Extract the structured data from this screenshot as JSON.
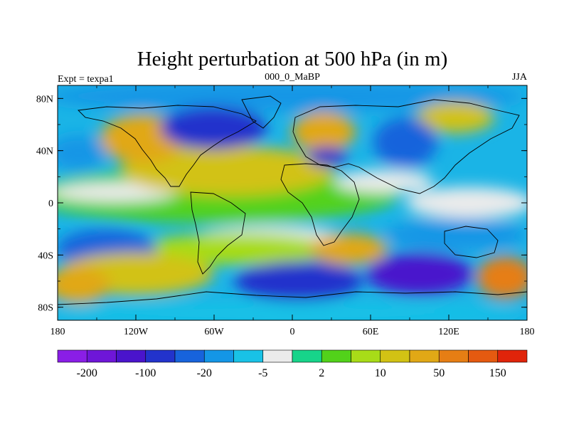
{
  "chart_data": {
    "type": "heatmap",
    "title": "Height perturbation at 500 hPa (in m)",
    "left_label": "Expt = texpa1",
    "center_label": "000_0_MaBP",
    "right_label": "JJA",
    "x_ticks": [
      "180",
      "120W",
      "60W",
      "0",
      "60E",
      "120E",
      "180"
    ],
    "y_ticks": [
      "80N",
      "40N",
      "0",
      "40S",
      "80S"
    ],
    "xlim": [
      -180,
      180
    ],
    "ylim": [
      -90,
      90
    ],
    "colorbar": {
      "levels": [
        "-200",
        "-100",
        "-20",
        "-5",
        "2",
        "10",
        "50",
        "150"
      ],
      "colors": [
        "#8a1ee6",
        "#6e16d8",
        "#4a14cc",
        "#2233cc",
        "#1763dc",
        "#1496e6",
        "#19c2e6",
        "#ebebeb",
        "#17d48a",
        "#52d21a",
        "#a8dc18",
        "#d2c214",
        "#e1a816",
        "#e67e14",
        "#e55a10",
        "#e0240a"
      ]
    }
  }
}
